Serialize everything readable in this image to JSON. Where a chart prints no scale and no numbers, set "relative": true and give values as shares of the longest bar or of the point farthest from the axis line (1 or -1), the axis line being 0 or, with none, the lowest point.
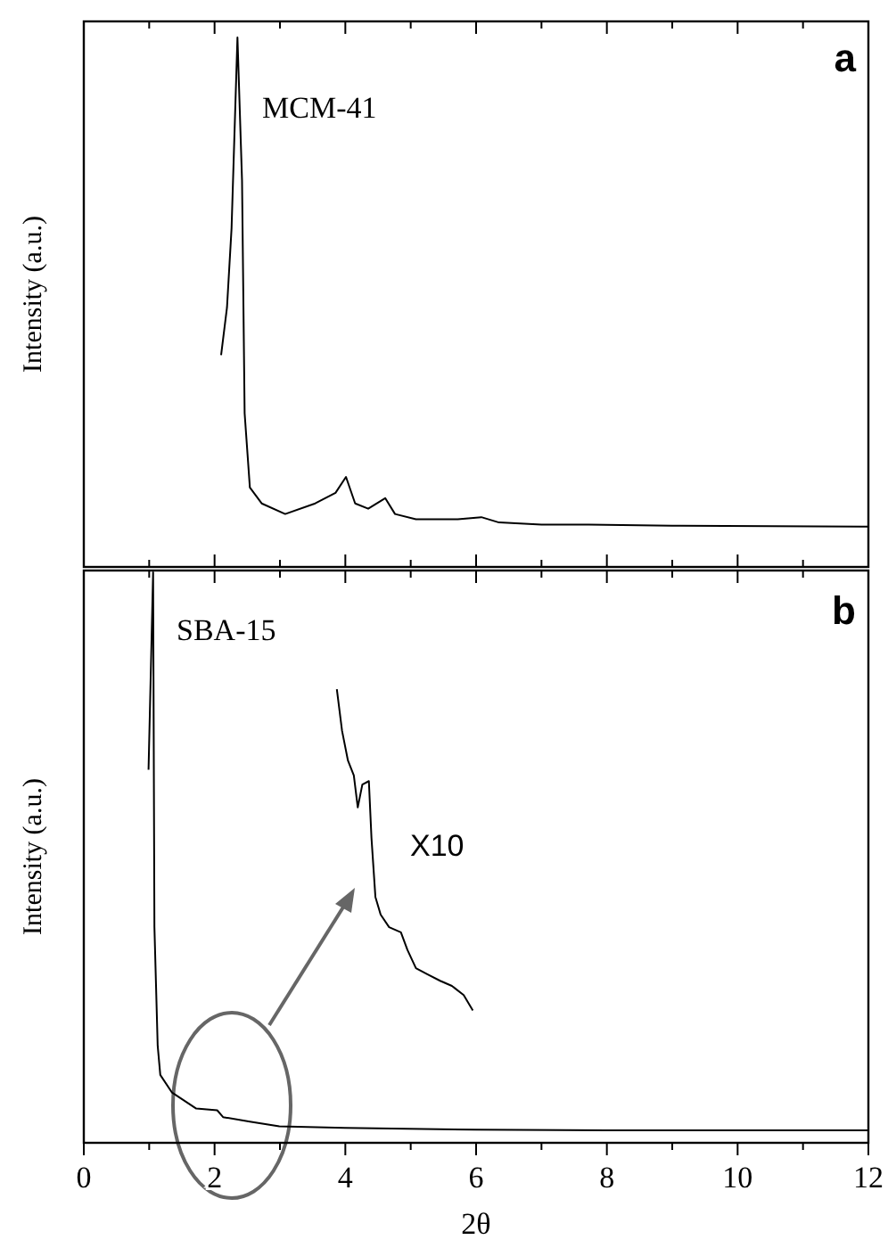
{
  "chart_data": [
    {
      "type": "line",
      "ylabel": "Intensity (a.u.)",
      "relative": true,
      "xlim": [
        0,
        12
      ],
      "xticks": [
        0,
        {
          "value": 1,
          "label": null
        },
        2,
        {
          "value": 3,
          "label": null
        },
        4,
        {
          "value": 5,
          "label": null
        },
        6,
        {
          "value": 7,
          "label": null
        },
        8,
        {
          "value": 9,
          "label": null
        },
        10,
        {
          "value": 11,
          "label": null
        },
        12
      ],
      "tick_labels": false,
      "annotations": [
        "MCM-41",
        "a"
      ],
      "series": [
        {
          "color": "#000000",
          "x": [
            2.1,
            2.19,
            2.26,
            2.35,
            2.42,
            2.46,
            2.54,
            2.72,
            3.08,
            3.54,
            3.85,
            4.01,
            4.15,
            4.35,
            4.61,
            4.76,
            5.08,
            5.72,
            6.08,
            6.35,
            7,
            7.72,
            9,
            11.9,
            12
          ],
          "values": [
            0.4,
            0.49,
            0.64,
            1,
            0.73,
            0.29,
            0.15,
            0.12,
            0.1,
            0.12,
            0.14,
            0.17,
            0.12,
            0.11,
            0.13,
            0.1,
            0.09,
            0.09,
            0.094,
            0.084,
            0.08,
            0.08,
            0.078,
            0.076,
            0.076
          ]
        }
      ]
    },
    {
      "type": "line",
      "xlabel": "2θ",
      "ylabel": "Intensity (a.u.)",
      "relative": true,
      "xlim": [
        0,
        12
      ],
      "xticks": [
        0,
        {
          "value": 1,
          "label": null
        },
        2,
        {
          "value": 3,
          "label": null
        },
        4,
        {
          "value": 5,
          "label": null
        },
        6,
        {
          "value": 7,
          "label": null
        },
        8,
        {
          "value": 9,
          "label": null
        },
        10,
        {
          "value": 11,
          "label": null
        },
        12
      ],
      "tick_labels": "x",
      "annotations": [
        "SBA-15",
        "b",
        "X10"
      ],
      "series": [
        {
          "color": "#000000",
          "x": [
            0.99,
            1.06,
            1.08,
            1.13,
            1.17,
            1.35,
            1.72,
            2.04,
            2.13,
            2.54,
            2.99,
            3.99,
            5.99,
            8,
            12
          ],
          "values": [
            0.654,
            1,
            0.378,
            0.17,
            0.119,
            0.088,
            0.06,
            0.057,
            0.045,
            0.037,
            0.029,
            0.026,
            0.023,
            0.022,
            0.022
          ]
        },
        {
          "color": "#000000",
          "x": [
            3.87,
            3.95,
            4.04,
            4.13,
            4.19,
            4.26,
            4.36,
            4.4,
            4.46,
            4.54,
            4.67,
            4.85,
            4.95,
            5.08,
            5.26,
            5.45,
            5.63,
            5.81,
            5.95
          ],
          "values": [
            0.795,
            0.722,
            0.67,
            0.644,
            0.588,
            0.628,
            0.634,
            0.534,
            0.431,
            0.4,
            0.378,
            0.369,
            0.338,
            0.306,
            0.295,
            0.284,
            0.275,
            0.259,
            0.232
          ]
        }
      ]
    }
  ]
}
